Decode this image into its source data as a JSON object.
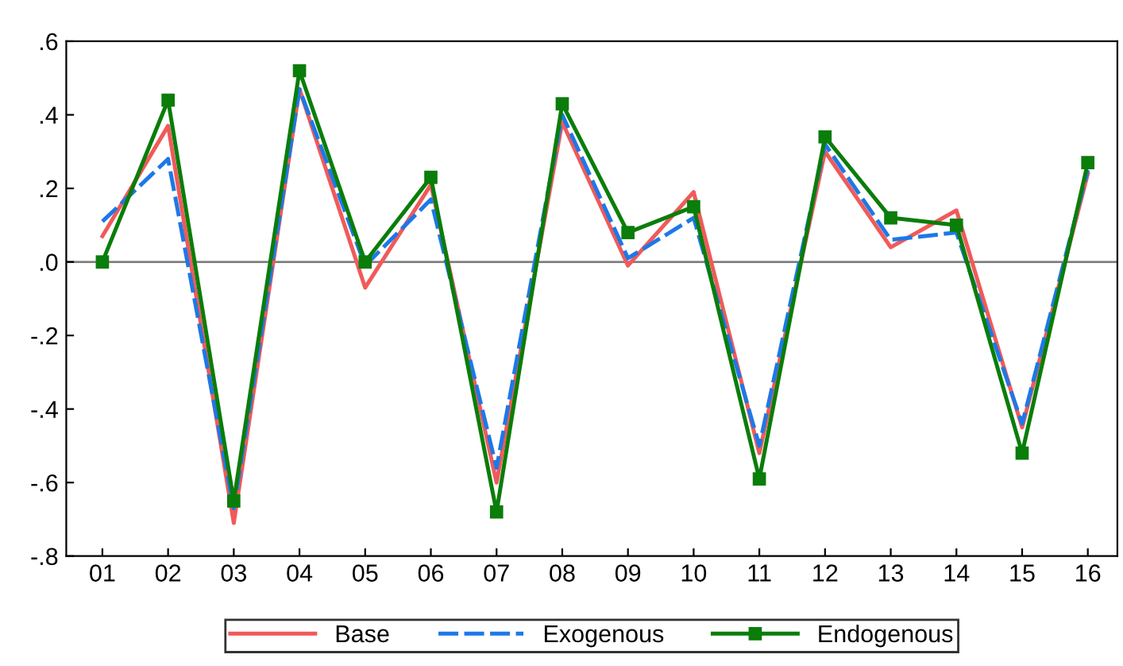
{
  "chart_data": {
    "type": "line",
    "categories": [
      "01",
      "02",
      "03",
      "04",
      "05",
      "06",
      "07",
      "08",
      "09",
      "10",
      "11",
      "12",
      "13",
      "14",
      "15",
      "16"
    ],
    "series": [
      {
        "name": "Base",
        "color": "#f05a5a",
        "line_style": "solid",
        "marker": "none",
        "values": [
          0.07,
          0.37,
          -0.71,
          0.47,
          -0.07,
          0.21,
          -0.6,
          0.38,
          -0.01,
          0.19,
          -0.52,
          0.3,
          0.04,
          0.14,
          -0.45,
          0.24
        ]
      },
      {
        "name": "Exogenous",
        "color": "#1e78e6",
        "line_style": "dashed",
        "marker": "none",
        "values": [
          0.11,
          0.28,
          -0.67,
          0.47,
          -0.01,
          0.17,
          -0.56,
          0.4,
          0.01,
          0.12,
          -0.5,
          0.32,
          0.06,
          0.08,
          -0.44,
          0.25
        ]
      },
      {
        "name": "Endogenous",
        "color": "#0a7d0a",
        "line_style": "solid",
        "marker": "square",
        "values": [
          0.0,
          0.44,
          -0.65,
          0.52,
          0.0,
          0.23,
          -0.68,
          0.43,
          0.08,
          0.15,
          -0.59,
          0.34,
          0.12,
          0.1,
          -0.52,
          0.27
        ]
      }
    ],
    "ylim": [
      -0.8,
      0.6
    ],
    "yticks": [
      {
        "value": -0.8,
        "label": "-.8"
      },
      {
        "value": -0.6,
        "label": "-.6"
      },
      {
        "value": -0.4,
        "label": "-.4"
      },
      {
        "value": -0.2,
        "label": "-.2"
      },
      {
        "value": 0,
        "label": ".0"
      },
      {
        "value": 0.2,
        "label": ".2"
      },
      {
        "value": 0.4,
        "label": ".4"
      },
      {
        "value": 0.6,
        "label": ".6"
      }
    ],
    "ref_lines": [
      {
        "axis": "y",
        "value": 0,
        "color": "#808080"
      }
    ],
    "grid": false,
    "legend": "bottom"
  }
}
